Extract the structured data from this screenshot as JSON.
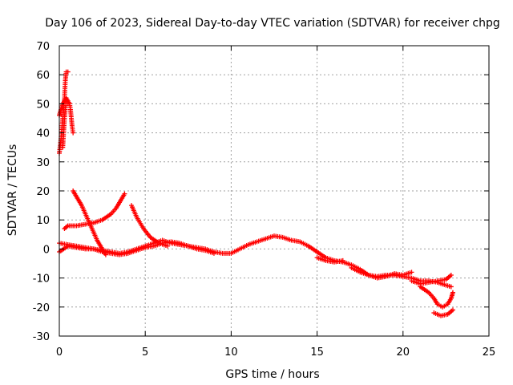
{
  "chart_data": {
    "type": "scatter",
    "title": "Day 106 of 2023, Sidereal Day-to-day VTEC variation (SDTVAR) for receiver chpg",
    "xlabel": "GPS time / hours",
    "ylabel": "SDTVAR / TECUs",
    "xlim": [
      0,
      25
    ],
    "ylim": [
      -30,
      70
    ],
    "xticks": [
      "0",
      "5",
      "10",
      "15",
      "20",
      "25"
    ],
    "yticks": [
      "-30",
      "-20",
      "-10",
      "0",
      "10",
      "20",
      "30",
      "40",
      "50",
      "60",
      "70"
    ],
    "grid": true,
    "marker": "+",
    "series": [
      {
        "name": "SDTVAR",
        "color": "#ff0000",
        "segments": [
          [
            [
              0.0,
              33
            ],
            [
              0.1,
              38
            ],
            [
              0.2,
              45
            ],
            [
              0.3,
              52
            ],
            [
              0.35,
              58
            ],
            [
              0.4,
              61
            ],
            [
              0.5,
              61
            ]
          ],
          [
            [
              0.0,
              46
            ],
            [
              0.1,
              48
            ],
            [
              0.2,
              50
            ],
            [
              0.3,
              51
            ],
            [
              0.4,
              52
            ],
            [
              0.5,
              51
            ],
            [
              0.6,
              50
            ],
            [
              0.65,
              48
            ],
            [
              0.7,
              45
            ],
            [
              0.75,
              42
            ],
            [
              0.8,
              40
            ]
          ],
          [
            [
              0.2,
              35
            ],
            [
              0.25,
              40
            ],
            [
              0.3,
              45
            ],
            [
              0.35,
              48
            ],
            [
              0.4,
              50
            ],
            [
              0.5,
              50
            ],
            [
              0.6,
              50
            ]
          ],
          [
            [
              0.3,
              7
            ],
            [
              0.5,
              8
            ],
            [
              1.0,
              8
            ],
            [
              1.5,
              8.5
            ],
            [
              2.0,
              9
            ],
            [
              2.5,
              10
            ],
            [
              3.0,
              12
            ],
            [
              3.3,
              14
            ],
            [
              3.6,
              17
            ],
            [
              3.8,
              19
            ]
          ],
          [
            [
              0.8,
              20
            ],
            [
              1.0,
              18
            ],
            [
              1.3,
              15
            ],
            [
              1.6,
              11
            ],
            [
              1.9,
              7
            ],
            [
              2.2,
              3
            ],
            [
              2.5,
              0
            ],
            [
              2.7,
              -2
            ]
          ],
          [
            [
              4.2,
              15
            ],
            [
              4.5,
              11
            ],
            [
              4.9,
              7
            ],
            [
              5.3,
              4
            ],
            [
              5.8,
              2
            ],
            [
              6.3,
              1
            ]
          ],
          [
            [
              0.0,
              -1
            ],
            [
              0.5,
              1
            ],
            [
              1.0,
              0.5
            ],
            [
              1.5,
              0
            ],
            [
              2.0,
              0
            ],
            [
              2.5,
              -1
            ],
            [
              3.0,
              -1.5
            ],
            [
              3.5,
              -2
            ],
            [
              4.0,
              -1.5
            ],
            [
              4.5,
              -0.5
            ],
            [
              5.0,
              0.5
            ],
            [
              5.5,
              1
            ],
            [
              6.0,
              2
            ],
            [
              6.5,
              2.5
            ],
            [
              7.0,
              2
            ],
            [
              7.5,
              1
            ],
            [
              8.0,
              0.5
            ],
            [
              8.5,
              0
            ],
            [
              9.0,
              -1
            ],
            [
              9.5,
              -1.5
            ],
            [
              10.0,
              -1.5
            ],
            [
              10.5,
              0
            ],
            [
              11.0,
              1.5
            ],
            [
              11.5,
              2.5
            ],
            [
              12.0,
              3.5
            ],
            [
              12.5,
              4.5
            ],
            [
              13.0,
              4
            ],
            [
              13.5,
              3
            ],
            [
              14.0,
              2.5
            ],
            [
              14.5,
              1
            ],
            [
              15.0,
              -1
            ],
            [
              15.5,
              -3
            ],
            [
              16.0,
              -4
            ],
            [
              16.5,
              -4.5
            ],
            [
              17.0,
              -5.5
            ],
            [
              17.5,
              -7
            ],
            [
              18.0,
              -9
            ],
            [
              18.5,
              -9.5
            ],
            [
              19.0,
              -9
            ],
            [
              19.5,
              -9
            ],
            [
              20.0,
              -9.5
            ],
            [
              20.5,
              -10
            ],
            [
              21.0,
              -11
            ],
            [
              21.5,
              -11
            ],
            [
              22.0,
              -11.5
            ],
            [
              22.5,
              -12.5
            ],
            [
              22.8,
              -13
            ]
          ],
          [
            [
              0.0,
              2
            ],
            [
              0.5,
              1.5
            ],
            [
              1.0,
              1
            ],
            [
              1.5,
              0.5
            ],
            [
              2.0,
              0
            ],
            [
              2.5,
              -0.5
            ],
            [
              3.0,
              -1
            ],
            [
              3.5,
              -1.5
            ],
            [
              4.0,
              -1
            ],
            [
              4.5,
              0
            ],
            [
              5.0,
              1
            ],
            [
              5.5,
              2
            ],
            [
              6.0,
              3
            ],
            [
              6.5,
              2
            ],
            [
              7.0,
              1.5
            ],
            [
              7.5,
              1
            ],
            [
              8.0,
              0
            ],
            [
              8.5,
              -0.5
            ],
            [
              9.0,
              -1.5
            ]
          ],
          [
            [
              15.0,
              -3
            ],
            [
              15.5,
              -4
            ],
            [
              16.0,
              -4.5
            ],
            [
              16.5,
              -4
            ]
          ],
          [
            [
              17.0,
              -6.5
            ],
            [
              17.5,
              -8
            ],
            [
              18.0,
              -9
            ],
            [
              18.5,
              -10
            ],
            [
              19.0,
              -9.5
            ],
            [
              19.5,
              -8.5
            ],
            [
              20.0,
              -9
            ],
            [
              20.5,
              -8
            ]
          ],
          [
            [
              20.5,
              -11
            ],
            [
              21.0,
              -12
            ],
            [
              21.5,
              -11.5
            ],
            [
              22.0,
              -11
            ],
            [
              22.5,
              -10.5
            ],
            [
              22.8,
              -9
            ]
          ],
          [
            [
              21.0,
              -13
            ],
            [
              21.5,
              -15
            ],
            [
              21.8,
              -17
            ],
            [
              22.0,
              -19
            ],
            [
              22.3,
              -20
            ],
            [
              22.6,
              -19
            ],
            [
              22.8,
              -17
            ],
            [
              22.9,
              -15
            ]
          ],
          [
            [
              21.8,
              -22
            ],
            [
              22.2,
              -23
            ],
            [
              22.6,
              -22.5
            ],
            [
              22.9,
              -21
            ]
          ]
        ]
      }
    ]
  }
}
